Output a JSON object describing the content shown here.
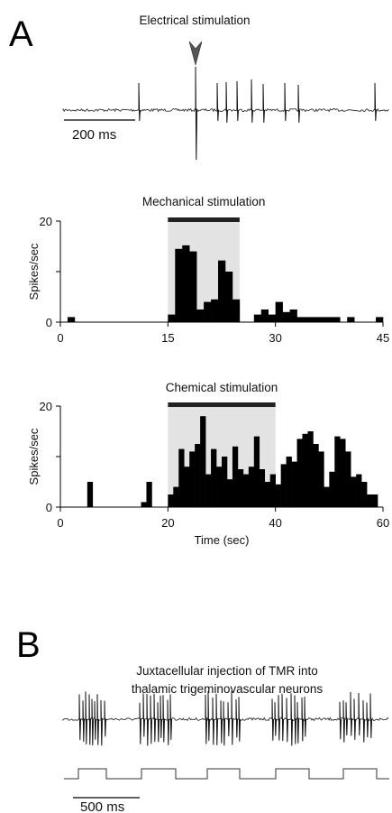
{
  "panel_a": {
    "letter": "A",
    "electrical": {
      "title": "Electrical stimulation",
      "scale_bar_label": "200 ms"
    }
  },
  "panel_b": {
    "letter": "B",
    "title_line1": "Juxtacellular injection of TMR into",
    "title_line2": "thalamic trigeminovascular neurons",
    "scale_bar_label": "500 ms"
  },
  "colors": {
    "bars": "#000000",
    "shade": "#e3e3e3",
    "stim_bar": "#222222"
  },
  "chart_data": [
    {
      "type": "bar",
      "title": "Mechanical stimulation",
      "ylabel": "Spikes/sec",
      "xlabel": "",
      "xlim": [
        0,
        45
      ],
      "ylim": [
        0,
        20
      ],
      "xticks": [
        0,
        15,
        30,
        45
      ],
      "yticks": [
        0,
        20
      ],
      "bin_width": 1,
      "stimulus": [
        15,
        25
      ],
      "x": [
        1,
        15,
        16,
        17,
        18,
        19,
        20,
        21,
        22,
        23,
        24,
        27,
        28,
        29,
        30,
        31,
        32,
        33,
        34,
        35,
        36,
        37,
        38,
        40,
        44
      ],
      "values": [
        1,
        1.5,
        14.5,
        15.2,
        14,
        2.5,
        4,
        4.5,
        12.2,
        10,
        4.5,
        1.5,
        2.5,
        1.5,
        4,
        2,
        2.5,
        1,
        1,
        1,
        1,
        1,
        1,
        1,
        1
      ]
    },
    {
      "type": "bar",
      "title": "Chemical stimulation",
      "ylabel": "Spikes/sec",
      "xlabel": "Time (sec)",
      "xlim": [
        0,
        60
      ],
      "ylim": [
        0,
        20
      ],
      "xticks": [
        0,
        20,
        40,
        60
      ],
      "yticks": [
        0,
        20
      ],
      "bin_width": 1,
      "stimulus": [
        20,
        40
      ],
      "x": [
        5,
        15,
        16,
        20,
        21,
        22,
        23,
        24,
        25,
        26,
        27,
        28,
        29,
        30,
        31,
        32,
        33,
        34,
        35,
        36,
        37,
        38,
        39,
        40,
        41,
        42,
        43,
        44,
        45,
        46,
        47,
        48,
        49,
        50,
        51,
        52,
        53,
        54,
        55,
        56,
        57,
        58
      ],
      "values": [
        5,
        1,
        5,
        2.5,
        4,
        11.5,
        8,
        11,
        12.5,
        18,
        6.5,
        11.5,
        8,
        10,
        5.5,
        12,
        7.5,
        6.5,
        8,
        14,
        7.5,
        5,
        6.5,
        4.5,
        8.5,
        10,
        9,
        13.5,
        14.5,
        15,
        12.5,
        11,
        4,
        7,
        14,
        13.5,
        11,
        6,
        6.5,
        5,
        2.5,
        2.5
      ]
    }
  ]
}
